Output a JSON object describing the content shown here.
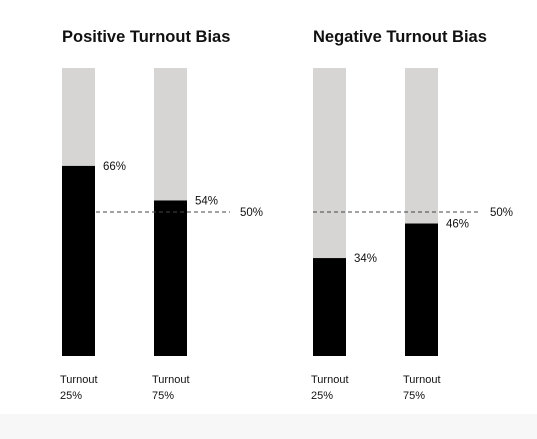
{
  "colors": {
    "background": "#ffffff",
    "track": "#d6d5d3",
    "fill": "#000000",
    "reference_line": "#444444"
  },
  "chart_data": [
    {
      "type": "bar",
      "title": "Positive Turnout Bias",
      "categories": [
        [
          "Turnout",
          "25%"
        ],
        [
          "Turnout",
          "75%"
        ]
      ],
      "values": [
        66,
        54
      ],
      "value_labels": [
        "66%",
        "54%"
      ],
      "ylim": [
        0,
        100
      ],
      "reference_line": {
        "value": 50,
        "label": "50%"
      },
      "grid": false
    },
    {
      "type": "bar",
      "title": "Negative Turnout Bias",
      "categories": [
        [
          "Turnout",
          "25%"
        ],
        [
          "Turnout",
          "75%"
        ]
      ],
      "values": [
        34,
        46
      ],
      "value_labels": [
        "34%",
        "46%"
      ],
      "ylim": [
        0,
        100
      ],
      "reference_line": {
        "value": 50,
        "label": "50%"
      },
      "grid": false
    }
  ]
}
